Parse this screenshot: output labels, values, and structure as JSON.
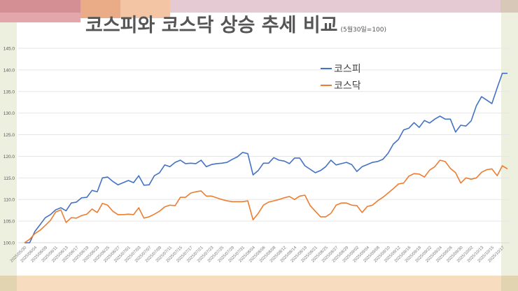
{
  "chart_data": {
    "type": "line",
    "title": "코스피와 코스닥 상승 추세 비교",
    "subtitle": "(5월30일=100)",
    "xlabel": "",
    "ylabel": "",
    "ylim": [
      100,
      145
    ],
    "yticks": [
      "100.0",
      "105.0",
      "110.0",
      "115.0",
      "120.0",
      "125.0",
      "130.0",
      "135.0",
      "140.0",
      "145.0"
    ],
    "grid": true,
    "legend_position": "top-right",
    "xtick_labels": [
      "2025/05/30",
      "2025/06/04",
      "2025/06/09",
      "2025/06/11",
      "2025/06/13",
      "2025/06/17",
      "2025/06/19",
      "2025/06/23",
      "2025/06/25",
      "2025/06/27",
      "2025/07/01",
      "2025/07/03",
      "2025/07/07",
      "2025/07/09",
      "2025/07/11",
      "2025/07/15",
      "2025/07/17",
      "2025/07/21",
      "2025/07/23",
      "2025/07/25",
      "2025/07/29",
      "2025/07/31",
      "2025/08/04",
      "2025/08/06",
      "2025/08/08",
      "2025/08/12",
      "2025/08/14",
      "2025/08/19",
      "2025/08/21",
      "2025/08/25",
      "2025/08/27",
      "2025/08/29",
      "2025/09/02",
      "2025/09/04",
      "2025/09/08",
      "2025/09/10",
      "2025/09/12",
      "2025/09/16",
      "2025/09/18",
      "2025/09/22",
      "2025/09/24",
      "2025/09/26",
      "2025/09/30",
      "2025/10/02",
      "2025/10/13",
      "2025/10/15",
      "2025/10/17"
    ],
    "series": [
      {
        "name": "코스피",
        "color": "#4472C4",
        "values": [
          100,
          100,
          102.6,
          104.2,
          105.8,
          106.5,
          107.6,
          108.1,
          107.4,
          109.2,
          109.4,
          110.4,
          110.5,
          112.1,
          111.8,
          115.0,
          115.2,
          114.2,
          113.4,
          113.9,
          114.4,
          113.9,
          115.5,
          113.3,
          113.4,
          115.5,
          116.2,
          118.0,
          117.6,
          118.6,
          119.1,
          118.3,
          118.4,
          118.3,
          119.1,
          117.6,
          118.1,
          118.3,
          118.4,
          118.6,
          119.3,
          119.9,
          120.9,
          120.6,
          115.7,
          116.7,
          118.4,
          118.4,
          119.7,
          119.1,
          118.9,
          118.3,
          119.6,
          119.6,
          117.8,
          117.0,
          116.2,
          116.7,
          117.6,
          119.1,
          118.0,
          118.3,
          118.6,
          118.1,
          116.5,
          117.6,
          118.1,
          118.6,
          118.8,
          119.3,
          120.7,
          122.8,
          123.9,
          126.1,
          126.5,
          127.8,
          126.7,
          128.3,
          127.7,
          128.6,
          129.3,
          128.6,
          128.6,
          125.6,
          127.2,
          127.0,
          128.2,
          131.7,
          133.8,
          133.0,
          132.2,
          135.8,
          139.2,
          139.2
        ]
      },
      {
        "name": "코스닥",
        "color": "#ED7D31",
        "values": [
          100,
          100.8,
          102.1,
          102.9,
          104.0,
          105.2,
          107.1,
          107.6,
          104.7,
          105.8,
          105.7,
          106.3,
          106.6,
          107.8,
          107.0,
          109.1,
          108.7,
          107.3,
          106.5,
          106.5,
          106.6,
          106.5,
          108.1,
          105.7,
          106.0,
          106.6,
          107.3,
          108.3,
          108.7,
          108.6,
          110.5,
          110.5,
          111.5,
          111.8,
          112.0,
          110.8,
          110.8,
          110.4,
          110.0,
          109.7,
          109.5,
          109.5,
          109.5,
          109.7,
          105.3,
          106.8,
          108.7,
          109.4,
          109.7,
          110.0,
          110.4,
          110.7,
          110.0,
          110.8,
          111.0,
          108.6,
          107.3,
          106.0,
          106.0,
          106.8,
          108.7,
          109.2,
          109.2,
          108.7,
          108.6,
          107.0,
          108.4,
          108.7,
          109.7,
          110.5,
          111.5,
          112.5,
          113.6,
          113.8,
          115.4,
          116.0,
          115.9,
          115.2,
          116.8,
          117.6,
          119.1,
          118.8,
          117.2,
          116.2,
          113.8,
          115.0,
          114.7,
          115.0,
          116.3,
          116.9,
          117.1,
          115.5,
          117.8,
          117.1
        ]
      }
    ]
  },
  "colors": {
    "kospi": "#4472C4",
    "kosdaq": "#ED7D31"
  }
}
